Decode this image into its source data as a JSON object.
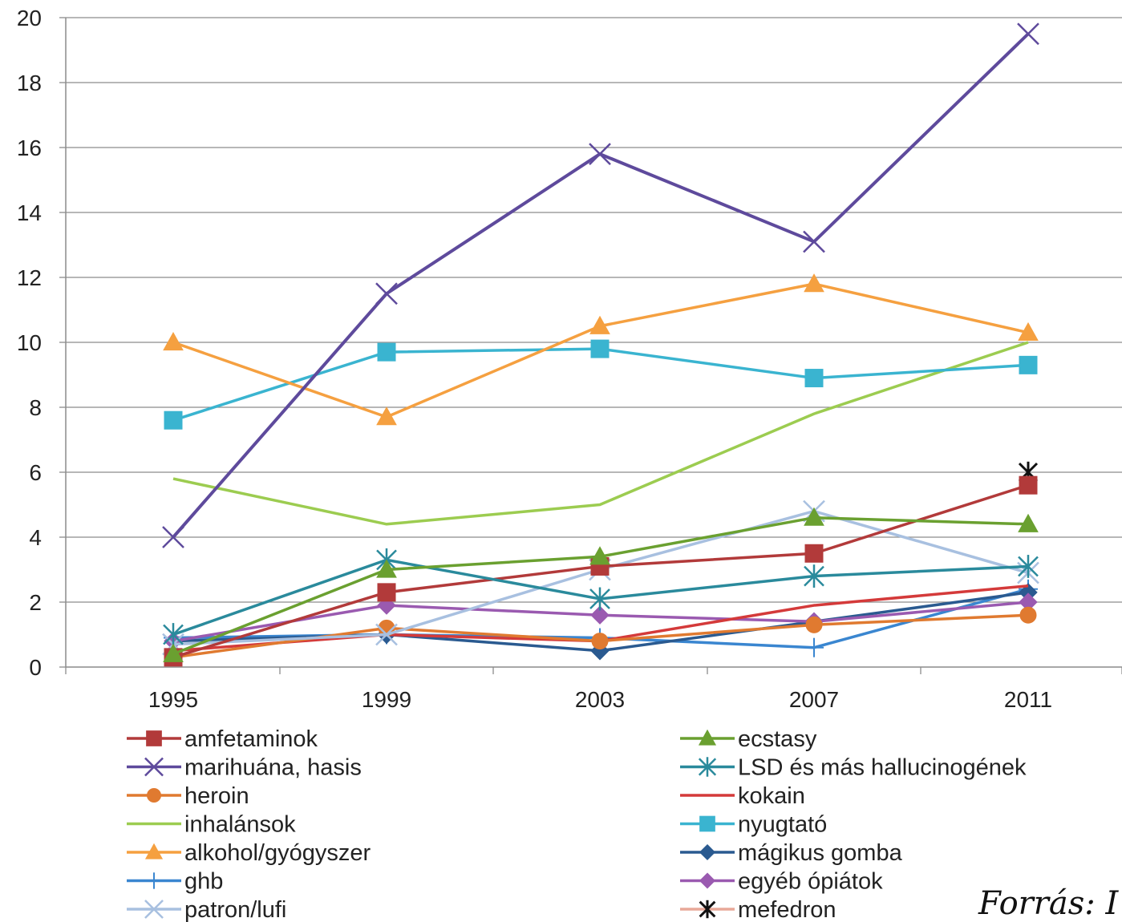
{
  "source_note": "Forrás: I",
  "chart_data": {
    "type": "line",
    "title": "",
    "xlabel": "",
    "ylabel": "",
    "x": [
      "1995",
      "1999",
      "2003",
      "2007",
      "2011"
    ],
    "ylim": [
      0,
      20
    ],
    "yticks": [
      0,
      2,
      4,
      6,
      8,
      10,
      12,
      14,
      16,
      18,
      20
    ],
    "grid": true,
    "legend_position": "bottom",
    "series": [
      {
        "name": "amfetaminok",
        "color": "#b23a3a",
        "marker": "square",
        "values": [
          0.3,
          2.3,
          3.1,
          3.5,
          5.6
        ]
      },
      {
        "name": "ecstasy",
        "color": "#6aa030",
        "marker": "triangle",
        "values": [
          0.4,
          3.0,
          3.4,
          4.6,
          4.4
        ]
      },
      {
        "name": "marihuána, hasis",
        "color": "#5e4a9c",
        "marker": "x",
        "values": [
          4.0,
          11.5,
          15.8,
          13.1,
          19.5
        ]
      },
      {
        "name": "LSD és más hallucinogének",
        "color": "#2a8a9c",
        "marker": "star",
        "values": [
          1.0,
          3.3,
          2.1,
          2.8,
          3.1
        ]
      },
      {
        "name": "heroin",
        "color": "#e07a30",
        "marker": "circle",
        "values": [
          0.3,
          1.2,
          0.8,
          1.3,
          1.6
        ]
      },
      {
        "name": "kokain",
        "color": "#d43a3a",
        "marker": "none",
        "values": [
          0.5,
          1.0,
          0.8,
          1.9,
          2.5
        ]
      },
      {
        "name": "inhalánsok",
        "color": "#9ccc50",
        "marker": "none",
        "values": [
          5.8,
          4.4,
          5.0,
          7.8,
          10.0
        ]
      },
      {
        "name": "nyugtató",
        "color": "#3ab4d0",
        "marker": "square",
        "values": [
          7.6,
          9.7,
          9.8,
          8.9,
          9.3
        ]
      },
      {
        "name": "alkohol/gyógyszer",
        "color": "#f5a040",
        "marker": "triangle",
        "values": [
          10.0,
          7.7,
          10.5,
          11.8,
          10.3
        ]
      },
      {
        "name": "mágikus gomba",
        "color": "#2a5a90",
        "marker": "diamond",
        "values": [
          0.8,
          1.0,
          0.5,
          1.4,
          2.3
        ]
      },
      {
        "name": "ghb",
        "color": "#3a86d0",
        "marker": "plus",
        "values": [
          0.9,
          1.0,
          0.9,
          0.6,
          2.4
        ]
      },
      {
        "name": "egyéb ópiátok",
        "color": "#9a5ab0",
        "marker": "diamond",
        "values": [
          0.8,
          1.9,
          1.6,
          1.4,
          2.0
        ]
      },
      {
        "name": "patron/lufi",
        "color": "#a8c0e0",
        "marker": "x",
        "values": [
          0.7,
          1.0,
          3.0,
          4.8,
          2.9
        ]
      },
      {
        "name": "mefedron",
        "color": "#e8a898",
        "marker": "asterisk",
        "values": [
          null,
          null,
          null,
          null,
          6.0
        ]
      }
    ]
  }
}
